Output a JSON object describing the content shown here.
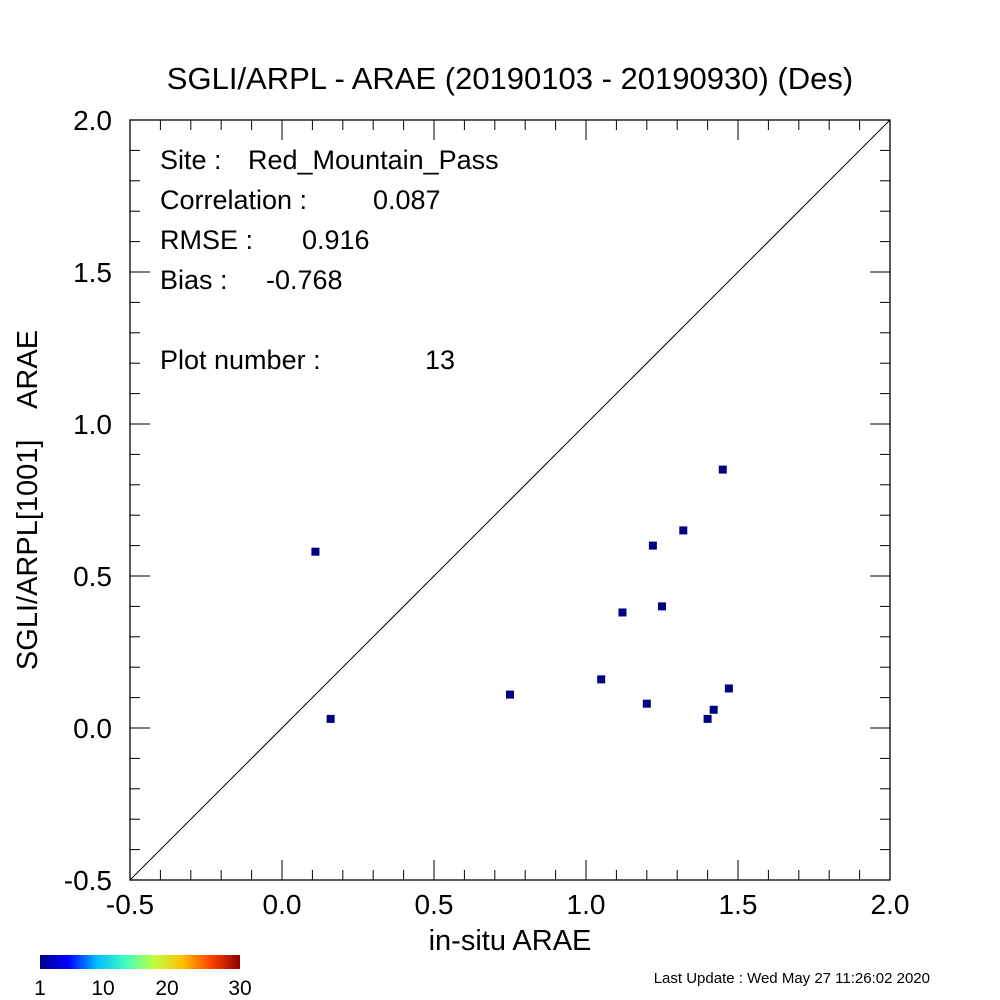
{
  "chart_data": {
    "type": "scatter",
    "title": "SGLI/ARPL - ARAE (20190103 - 20190930) (Des)",
    "xlabel": "in-situ ARAE",
    "ylabel": "SGLI/ARPL[1001]    ARAE",
    "xlim": [
      -0.5,
      2.0
    ],
    "ylim": [
      -0.5,
      2.0
    ],
    "xticks": [
      "-0.5",
      "0.0",
      "0.5",
      "1.0",
      "1.5",
      "2.0"
    ],
    "yticks": [
      "-0.5",
      "0.0",
      "0.5",
      "1.0",
      "1.5",
      "2.0"
    ],
    "grid": false,
    "reference_line": "1:1",
    "point_color": "#000080",
    "points": [
      {
        "x": 0.11,
        "y": 0.58
      },
      {
        "x": 0.16,
        "y": 0.03
      },
      {
        "x": 0.75,
        "y": 0.11
      },
      {
        "x": 1.05,
        "y": 0.16
      },
      {
        "x": 1.12,
        "y": 0.38
      },
      {
        "x": 1.2,
        "y": 0.08
      },
      {
        "x": 1.22,
        "y": 0.6
      },
      {
        "x": 1.25,
        "y": 0.4
      },
      {
        "x": 1.32,
        "y": 0.65
      },
      {
        "x": 1.4,
        "y": 0.03
      },
      {
        "x": 1.42,
        "y": 0.06
      },
      {
        "x": 1.45,
        "y": 0.85
      },
      {
        "x": 1.47,
        "y": 0.13
      }
    ],
    "stats": {
      "site_label": "Site :",
      "site": "Red_Mountain_Pass",
      "correlation_label": "Correlation :",
      "correlation": "0.087",
      "rmse_label": "RMSE :",
      "rmse": "0.916",
      "bias_label": "Bias :",
      "bias": "-0.768",
      "plot_number_label": "Plot number :",
      "plot_number": "13"
    },
    "colorbar": {
      "ticks": [
        "1",
        "10",
        "20",
        "30"
      ],
      "colors": [
        "#00008f",
        "#0000ff",
        "#00bfff",
        "#40ffbf",
        "#bfff40",
        "#ffbf00",
        "#ff4000",
        "#8f0000"
      ]
    }
  },
  "footer": "Last Update : Wed May 27 11:26:02 2020"
}
